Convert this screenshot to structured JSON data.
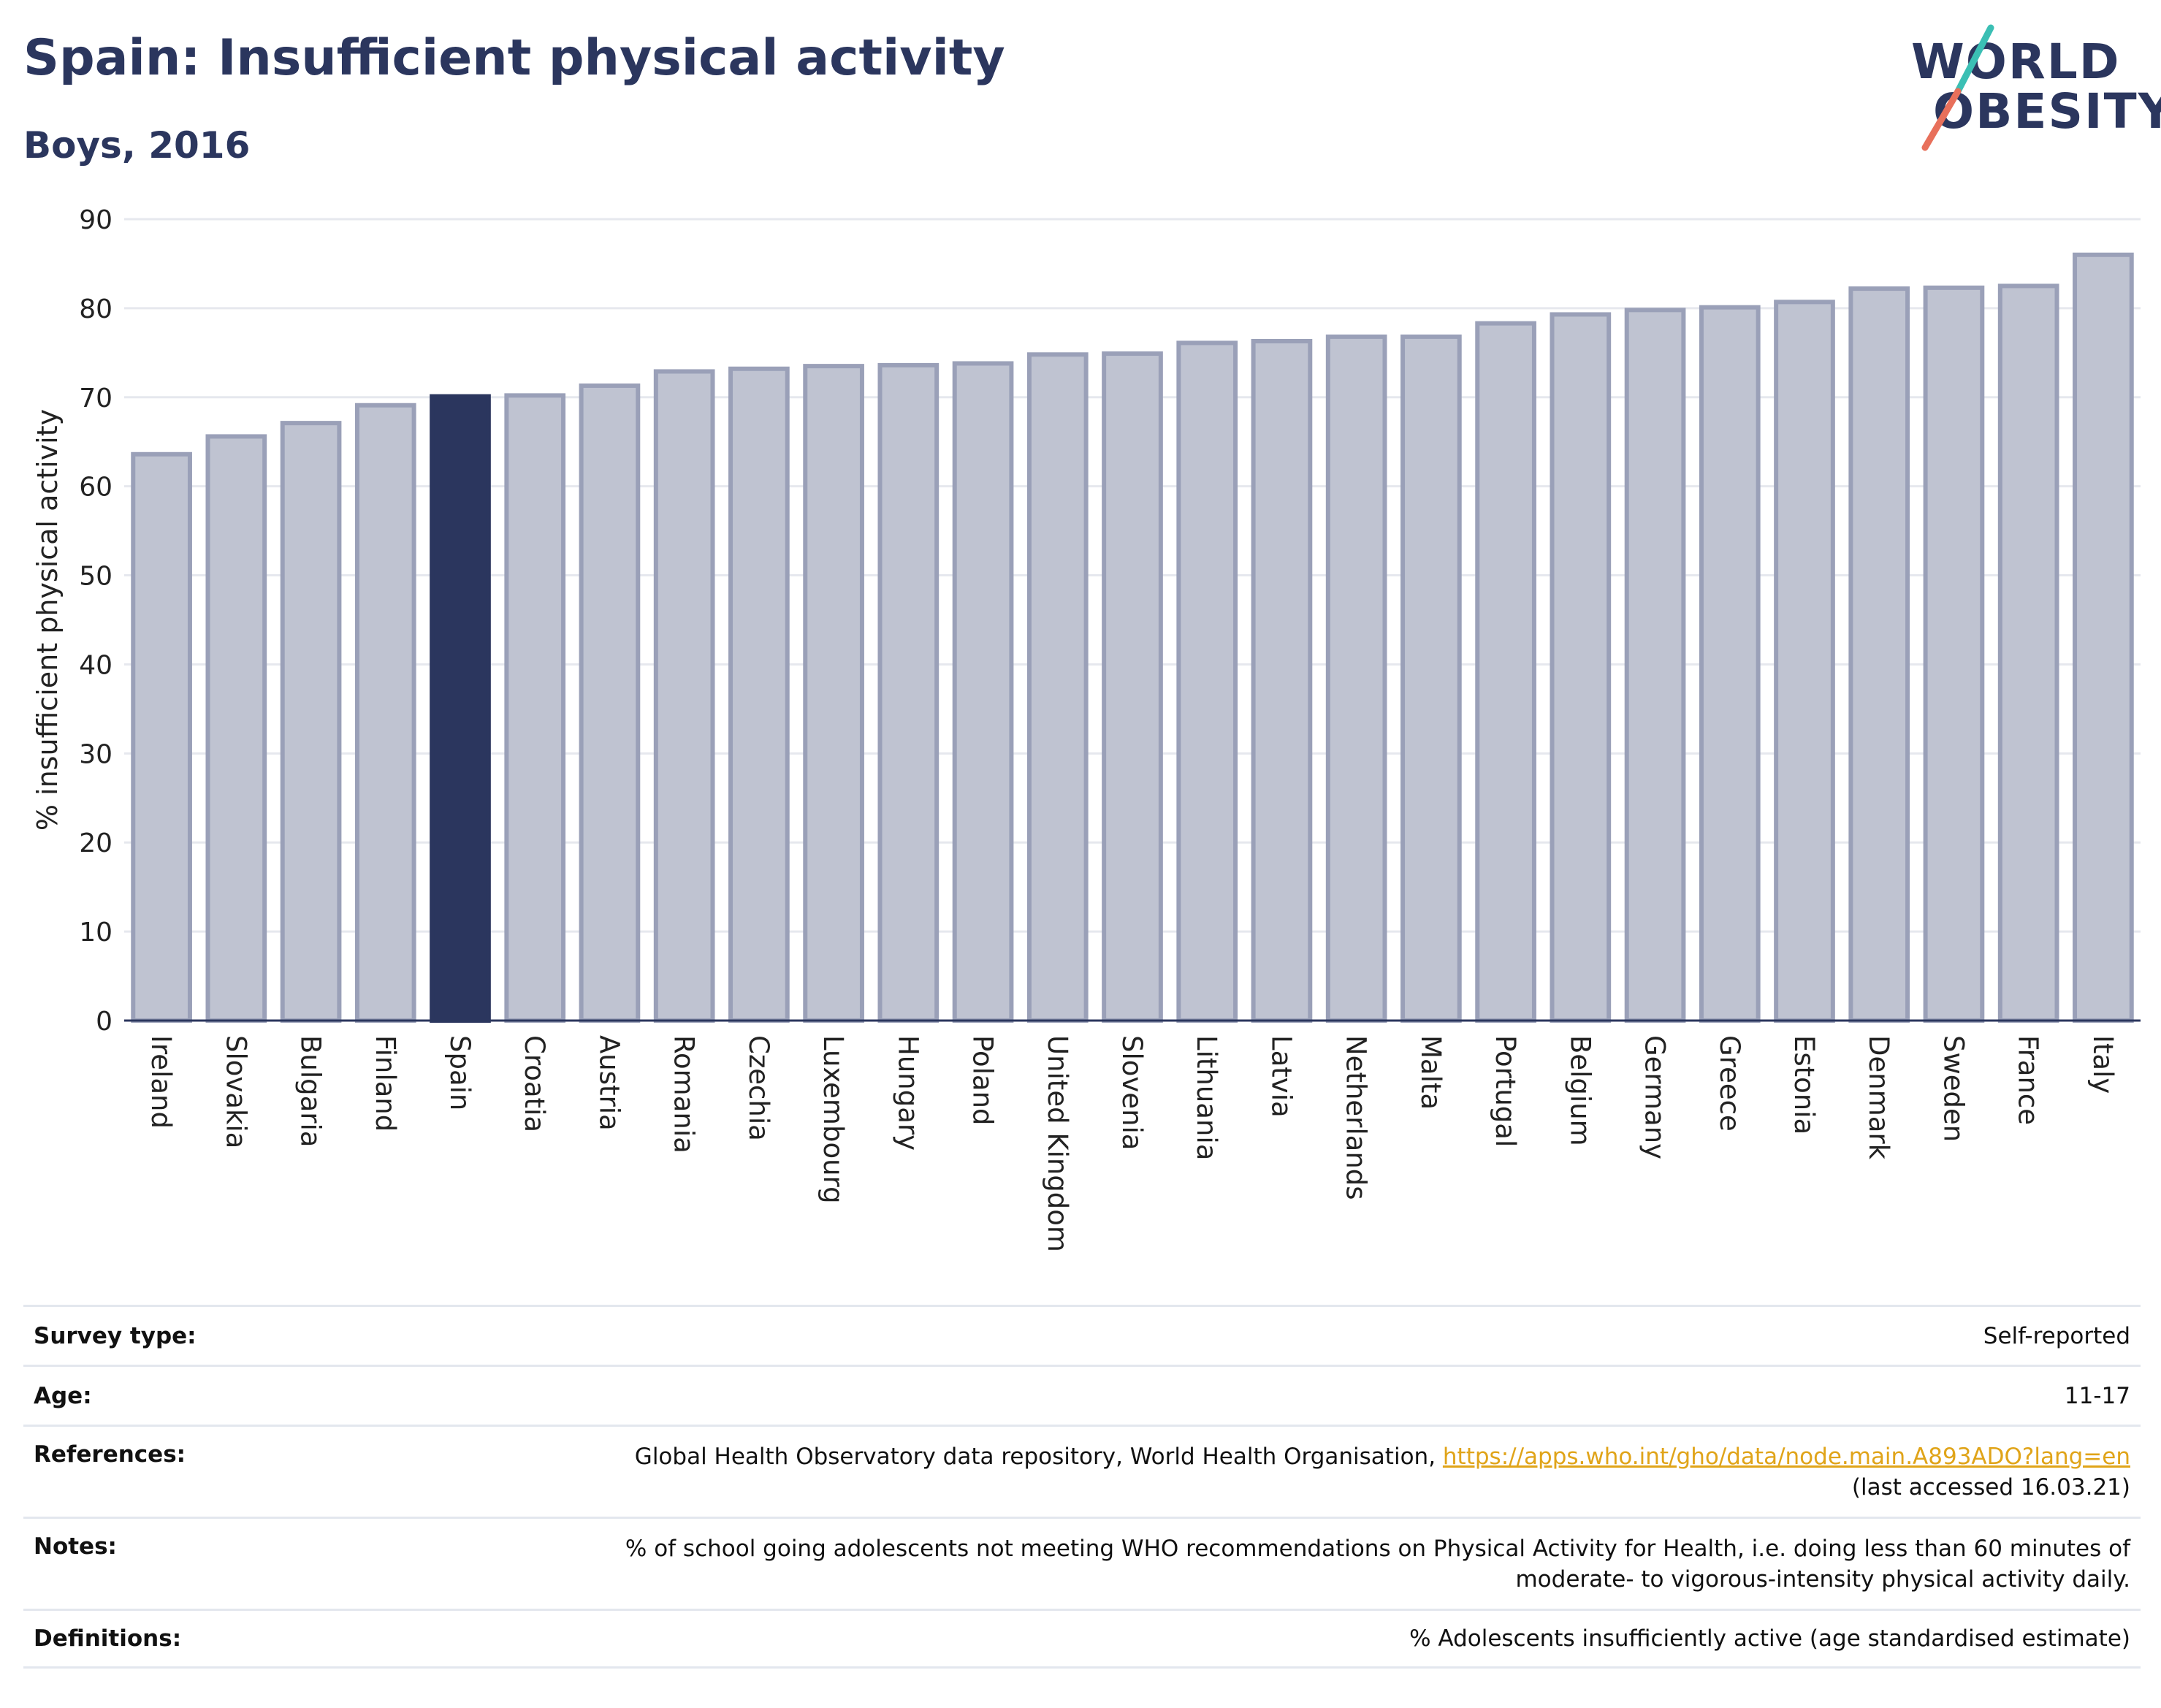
{
  "header": {
    "title": "Spain: Insufficient physical activity",
    "subtitle": "Boys, 2016"
  },
  "logo": {
    "line1": "WORLD",
    "line2": "OBESITY",
    "colors": {
      "text": "#2b365e",
      "slash_teal": "#3bbfb4",
      "slash_coral": "#e8705b"
    }
  },
  "colors": {
    "bar_fill": "#bfc3d1",
    "bar_stroke": "#9aa0b8",
    "highlight_fill": "#2b365e",
    "axis_text": "#222222",
    "grid": "#e6e8ee"
  },
  "chart_data": {
    "type": "bar",
    "title": "Spain: Insufficient physical activity",
    "subtitle": "Boys, 2016",
    "xlabel": "",
    "ylabel": "% insufficient physical activity",
    "ylim": [
      0,
      90
    ],
    "yticks": [
      0,
      10,
      20,
      30,
      40,
      50,
      60,
      70,
      80,
      90
    ],
    "grid": true,
    "highlight": "Spain",
    "categories": [
      "Ireland",
      "Slovakia",
      "Bulgaria",
      "Finland",
      "Spain",
      "Croatia",
      "Austria",
      "Romania",
      "Czechia",
      "Luxembourg",
      "Hungary",
      "Poland",
      "United Kingdom",
      "Slovenia",
      "Lithuania",
      "Latvia",
      "Netherlands",
      "Malta",
      "Portugal",
      "Belgium",
      "Germany",
      "Greece",
      "Estonia",
      "Denmark",
      "Sweden",
      "France",
      "Italy"
    ],
    "values": [
      63.6,
      65.6,
      67.1,
      69.1,
      70.1,
      70.2,
      71.3,
      72.9,
      73.2,
      73.5,
      73.6,
      73.8,
      74.8,
      74.9,
      76.1,
      76.3,
      76.8,
      76.8,
      78.3,
      79.3,
      79.8,
      80.1,
      80.7,
      82.2,
      82.3,
      82.5,
      86.0
    ]
  },
  "meta": {
    "survey_type": {
      "label": "Survey type:",
      "value": "Self-reported"
    },
    "age": {
      "label": "Age:",
      "value": "11-17"
    },
    "references": {
      "label": "References:",
      "text": "Global Health Observatory data repository, World Health Organisation, ",
      "link": "https://apps.who.int/gho/data/node.main.A893ADO?lang=en",
      "suffix": "(last accessed 16.03.21)"
    },
    "notes": {
      "label": "Notes:",
      "line1": "% of school going adolescents not meeting WHO recommendations on Physical Activity for Health, i.e. doing less than 60 minutes of",
      "line2": "moderate- to vigorous-intensity physical activity daily."
    },
    "definitions": {
      "label": "Definitions:",
      "value": "% Adolescents insufficiently active (age standardised estimate)"
    }
  }
}
